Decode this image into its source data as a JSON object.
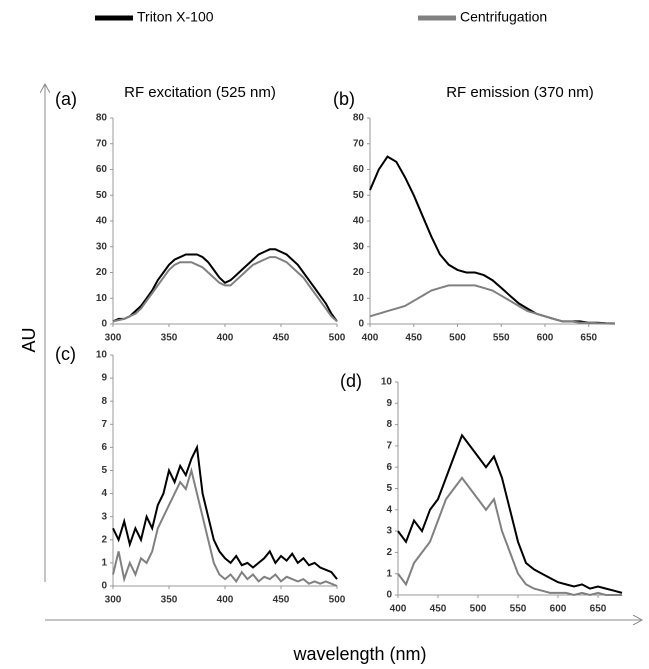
{
  "figure": {
    "ylabel": "AU",
    "xlabel": "wavelength (nm)"
  },
  "chart_data": [
    {
      "type": "line",
      "label": "(a)",
      "title": "RF excitation (525 nm)",
      "x": [
        300,
        305,
        310,
        315,
        320,
        325,
        330,
        335,
        340,
        345,
        350,
        355,
        360,
        365,
        370,
        375,
        380,
        385,
        390,
        395,
        400,
        405,
        410,
        415,
        420,
        425,
        430,
        435,
        440,
        445,
        450,
        455,
        460,
        465,
        470,
        475,
        480,
        485,
        490,
        495,
        500
      ],
      "series": [
        {
          "name": "Triton X-100",
          "color": "#000000",
          "values": [
            1,
            2,
            2,
            3,
            5,
            7,
            10,
            13,
            17,
            20,
            23,
            25,
            26,
            27,
            27,
            27,
            26,
            24,
            21,
            18,
            16,
            17,
            19,
            21,
            23,
            25,
            27,
            28,
            29,
            29,
            28,
            27,
            25,
            23,
            20,
            17,
            14,
            11,
            8,
            4,
            1
          ]
        },
        {
          "name": "Centrifugation",
          "color": "#808080",
          "values": [
            1,
            1.5,
            2,
            3,
            4,
            6,
            9,
            12,
            15,
            18,
            21,
            23,
            24,
            24,
            24,
            23,
            22,
            20,
            18,
            16,
            15,
            15,
            17,
            19,
            21,
            23,
            24,
            25,
            26,
            26,
            25,
            24,
            22,
            20,
            18,
            15,
            12,
            9,
            6,
            3,
            1
          ]
        }
      ],
      "xlim": [
        300,
        500
      ],
      "xticks": [
        300,
        350,
        400,
        450,
        500
      ],
      "ylim": [
        0,
        80
      ],
      "yticks": [
        0,
        10,
        20,
        30,
        40,
        50,
        60,
        70,
        80
      ]
    },
    {
      "type": "line",
      "label": "(b)",
      "title": "RF emission (370 nm)",
      "x": [
        400,
        410,
        420,
        430,
        440,
        450,
        460,
        470,
        480,
        490,
        500,
        510,
        520,
        530,
        540,
        550,
        560,
        570,
        580,
        590,
        600,
        610,
        620,
        630,
        640,
        650,
        660,
        670,
        680
      ],
      "series": [
        {
          "name": "Triton X-100",
          "color": "#000000",
          "values": [
            52,
            60,
            65,
            63,
            57,
            50,
            42,
            34,
            27,
            23,
            21,
            20,
            20,
            19,
            17,
            14,
            11,
            8,
            6,
            4,
            3,
            2,
            1,
            1,
            1,
            0.5,
            0.5,
            0.3,
            0.2
          ]
        },
        {
          "name": "Centrifugation",
          "color": "#808080",
          "values": [
            3,
            4,
            5,
            6,
            7,
            9,
            11,
            13,
            14,
            15,
            15,
            15,
            15,
            14,
            13,
            11,
            9,
            7,
            5,
            4,
            3,
            2,
            1,
            1,
            0.5,
            0.5,
            0.3,
            0.2,
            0.1
          ]
        }
      ],
      "xlim": [
        400,
        680
      ],
      "xticks": [
        400,
        450,
        500,
        550,
        600,
        650
      ],
      "ylim": [
        0,
        80
      ],
      "yticks": [
        0,
        10,
        20,
        30,
        40,
        50,
        60,
        70,
        80
      ]
    },
    {
      "type": "line",
      "label": "(c)",
      "x": [
        300,
        305,
        310,
        315,
        320,
        325,
        330,
        335,
        340,
        345,
        350,
        355,
        360,
        365,
        370,
        375,
        380,
        385,
        390,
        395,
        400,
        405,
        410,
        415,
        420,
        425,
        430,
        435,
        440,
        445,
        450,
        455,
        460,
        465,
        470,
        475,
        480,
        485,
        490,
        495,
        500
      ],
      "series": [
        {
          "name": "Triton X-100",
          "color": "#000000",
          "values": [
            2.5,
            2,
            2.8,
            1.8,
            2.5,
            2,
            3,
            2.5,
            3.5,
            4,
            5,
            4.5,
            5.2,
            4.8,
            5.5,
            6,
            4,
            3,
            2,
            1.5,
            1.2,
            1,
            1.3,
            0.9,
            1,
            0.8,
            1,
            1.2,
            1.5,
            1,
            1.3,
            1.1,
            1.4,
            1,
            1.2,
            0.9,
            1,
            0.8,
            0.7,
            0.6,
            0.3
          ]
        },
        {
          "name": "Centrifugation",
          "color": "#808080",
          "values": [
            0.5,
            1.5,
            0.3,
            1,
            0.5,
            1.2,
            1,
            1.5,
            2.5,
            3,
            3.5,
            4,
            4.5,
            4.2,
            5,
            4,
            3,
            2,
            1,
            0.5,
            0.3,
            0.5,
            0.2,
            0.6,
            0.3,
            0.5,
            0.2,
            0.4,
            0.3,
            0.5,
            0.2,
            0.4,
            0.3,
            0.2,
            0.3,
            0.1,
            0.2,
            0.1,
            0.2,
            0.1,
            0
          ]
        }
      ],
      "xlim": [
        300,
        500
      ],
      "xticks": [
        300,
        350,
        400,
        450,
        500
      ],
      "ylim": [
        0,
        10
      ],
      "yticks": [
        0,
        1,
        2,
        3,
        4,
        5,
        6,
        7,
        8,
        9,
        10
      ]
    },
    {
      "type": "line",
      "label": "(d)",
      "x": [
        400,
        410,
        420,
        430,
        440,
        450,
        460,
        470,
        480,
        490,
        500,
        510,
        520,
        530,
        540,
        550,
        560,
        570,
        580,
        590,
        600,
        610,
        620,
        630,
        640,
        650,
        660,
        670,
        680
      ],
      "series": [
        {
          "name": "Triton X-100",
          "color": "#000000",
          "values": [
            3,
            2.5,
            3.5,
            3,
            4,
            4.5,
            5.5,
            6.5,
            7.5,
            7,
            6.5,
            6,
            6.5,
            5.5,
            4,
            2.5,
            1.5,
            1.2,
            1,
            0.8,
            0.6,
            0.5,
            0.4,
            0.5,
            0.3,
            0.4,
            0.3,
            0.2,
            0.1
          ]
        },
        {
          "name": "Centrifugation",
          "color": "#808080",
          "values": [
            1,
            0.5,
            1.5,
            2,
            2.5,
            3.5,
            4.5,
            5,
            5.5,
            5,
            4.5,
            4,
            4.5,
            3,
            2,
            1,
            0.5,
            0.3,
            0.2,
            0.1,
            0.1,
            0.1,
            0,
            0.1,
            0,
            0.1,
            0,
            0,
            0
          ]
        }
      ],
      "xlim": [
        400,
        680
      ],
      "xticks": [
        400,
        450,
        500,
        550,
        600,
        650
      ],
      "ylim": [
        0,
        10
      ],
      "yticks": [
        0,
        1,
        2,
        3,
        4,
        5,
        6,
        7,
        8,
        9,
        10
      ]
    }
  ]
}
